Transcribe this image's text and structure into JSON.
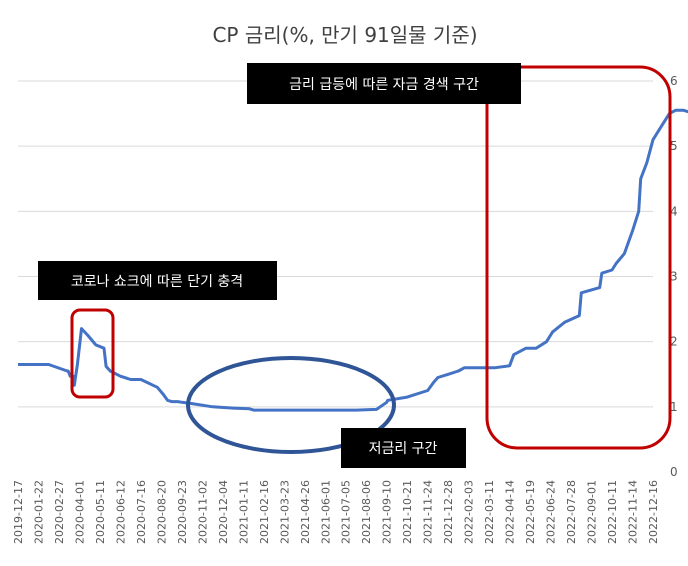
{
  "chart_data": {
    "type": "line",
    "title": "CP 금리(%, 만기 91일물 기준)",
    "xlabel": "",
    "ylabel": "",
    "ylim": [
      0,
      6
    ],
    "yticks": [
      "0",
      "1",
      "2",
      "3",
      "4",
      "5",
      "6"
    ],
    "y_axis_side": "right",
    "grid": true,
    "series_color": "#4472c4",
    "x_tick_labels": [
      "2019-12-17",
      "2020-01-22",
      "2020-02-27",
      "2020-04-01",
      "2020-05-11",
      "2020-06-12",
      "2020-07-16",
      "2020-08-20",
      "2020-09-23",
      "2020-11-02",
      "2020-12-04",
      "2021-01-11",
      "2021-02-16",
      "2021-03-23",
      "2021-04-26",
      "2021-06-01",
      "2021-07-05",
      "2021-08-06",
      "2021-09-10",
      "2021-10-21",
      "2021-11-24",
      "2021-12-28",
      "2022-02-03",
      "2022-03-11",
      "2022-04-14",
      "2022-05-19",
      "2022-06-24",
      "2022-07-28",
      "2022-09-01",
      "2022-10-11",
      "2022-11-14",
      "2022-12-16"
    ],
    "series": [
      {
        "x": [
          0,
          1.5,
          2.4,
          2.45,
          2.55,
          2.7,
          2.75,
          2.9,
          3.1,
          3.4,
          3.8,
          4.2,
          4.3,
          4.5,
          5,
          5.5,
          6,
          6.8,
          7.1,
          7.3,
          7.5,
          7.8,
          8.0,
          8.5,
          9.5,
          10.5,
          11.3,
          11.5,
          12.2,
          13.5,
          14,
          14.5,
          15.5,
          16.5,
          17.5,
          18.0,
          18.05,
          19,
          20,
          20.3,
          20.5,
          21,
          21.5,
          21.8,
          22.5,
          23.3,
          24,
          24.2,
          24.8,
          25.3,
          25.8,
          26.1,
          26.7,
          27.4,
          27.5,
          28.4,
          28.5,
          29,
          29.2,
          29.6,
          30,
          30.3,
          30.4,
          30.7,
          31.0,
          31.4,
          31.8,
          32.1,
          32.5,
          32.8,
          33.0,
          33.4
        ],
        "y": [
          1.65,
          1.65,
          1.55,
          1.55,
          1.47,
          1.47,
          1.33,
          1.65,
          2.2,
          2.1,
          1.95,
          1.9,
          1.62,
          1.55,
          1.47,
          1.42,
          1.42,
          1.3,
          1.19,
          1.1,
          1.08,
          1.08,
          1.07,
          1.05,
          1.0,
          0.98,
          0.97,
          0.95,
          0.95,
          0.95,
          0.95,
          0.95,
          0.95,
          0.95,
          0.96,
          1.07,
          1.1,
          1.15,
          1.25,
          1.38,
          1.45,
          1.5,
          1.55,
          1.6,
          1.6,
          1.6,
          1.63,
          1.8,
          1.9,
          1.9,
          2.0,
          2.15,
          2.3,
          2.4,
          2.75,
          2.83,
          3.05,
          3.1,
          3.2,
          3.35,
          3.7,
          4.0,
          4.5,
          4.75,
          5.1,
          5.3,
          5.5,
          5.55,
          5.55,
          5.52,
          5.48,
          5.45
        ]
      }
    ],
    "annotations": [
      {
        "text": "금리 급등에 따른 자금 경색 구간",
        "shape": "rounded-rectangle",
        "color": "#c00000"
      },
      {
        "text": "코로나 쇼크에 따른 단기 충격",
        "shape": "rounded-rectangle",
        "color": "#c00000"
      },
      {
        "text": "저금리 구간",
        "shape": "ellipse",
        "color": "#2f5597"
      }
    ]
  }
}
